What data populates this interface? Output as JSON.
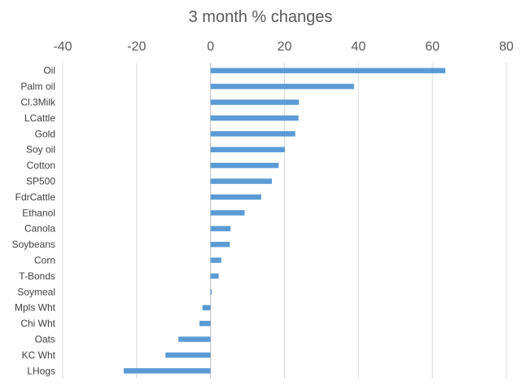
{
  "chart_data": {
    "type": "bar",
    "orientation": "horizontal",
    "title": "3 month % changes",
    "xlabel": "",
    "ylabel": "",
    "xlim": [
      -40,
      80
    ],
    "xticks": [
      -40,
      -20,
      0,
      20,
      40,
      60,
      80
    ],
    "x_axis_position": "top",
    "grid": "vertical",
    "legend": "none",
    "bar_color": "#5B9BD5",
    "categories": [
      "Oil",
      "Palm oil",
      "Cl.3Milk",
      "LCattle",
      "Gold",
      "Soy oil",
      "Cotton",
      "SP500",
      "FdrCattle",
      "Ethanol",
      "Canola",
      "Soybeans",
      "Corn",
      "T-Bonds",
      "Soymeal",
      "Mpls Wht",
      "Chi Wht",
      "Oats",
      "KC Wht",
      "LHogs"
    ],
    "values": [
      63.5,
      38.8,
      23.9,
      23.8,
      22.9,
      20.1,
      18.4,
      16.6,
      13.7,
      9.2,
      5.4,
      5.2,
      2.9,
      2.2,
      0.3,
      -2.2,
      -3.0,
      -8.7,
      -12.2,
      -23.5
    ]
  }
}
